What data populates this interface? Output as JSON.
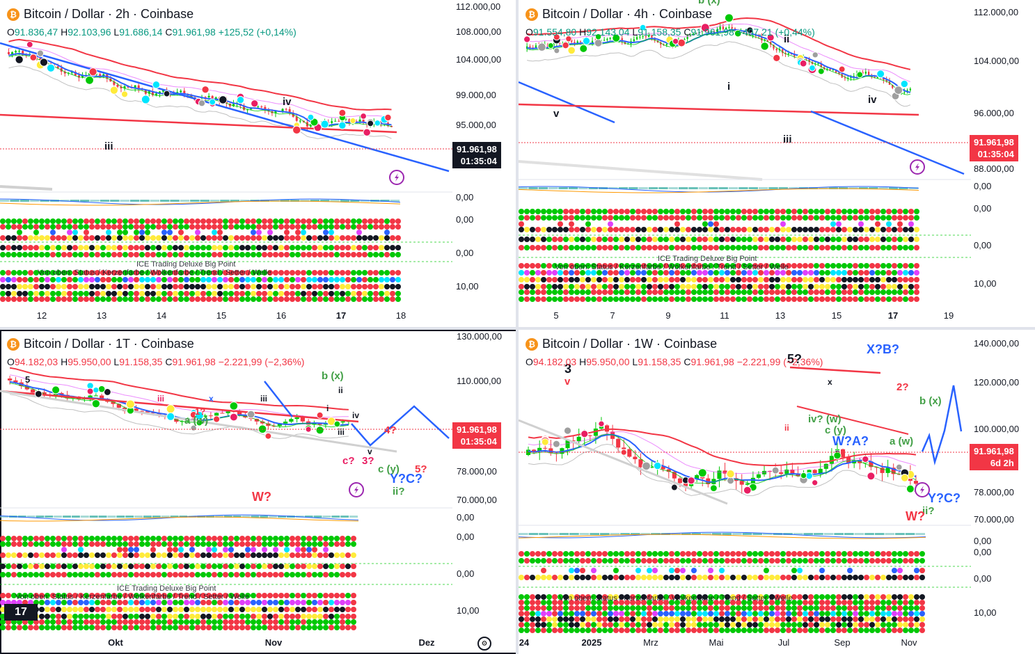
{
  "colors": {
    "up": "#00c805",
    "down": "#f23645",
    "blue": "#2962ff",
    "pink": "#e91e63",
    "green_wave": "#43a047",
    "bg": "#ffffff"
  },
  "panels": [
    {
      "id": "p2h",
      "title": "Bitcoin / Dollar · 2h · Coinbase",
      "ohlc": {
        "o": "91.836,47",
        "h": "92.103,96",
        "l": "91.686,14",
        "c": "91.961,98",
        "chg": "+125,52 (+0,14%)",
        "neg": false
      },
      "price_axis": [
        "112.000,00",
        "108.000,00",
        "104.000,00",
        "99.000,00",
        "95.000,00",
        "0,00",
        "0,00",
        "0,00",
        "10,00"
      ],
      "last_price": "91.961,98",
      "countdown": "01:35:04",
      "tag_style": "dark",
      "x_axis": [
        "12",
        "13",
        "14",
        "15",
        "16",
        "17",
        "18"
      ],
      "bold_x": "17",
      "waves": [
        {
          "t": "iv",
          "c": "#131722"
        },
        {
          "t": "iii",
          "c": "#131722"
        }
      ],
      "indicator_label": "Von oben: Status / Kerzenfarbe / Wolkenfarbe / Trend / Setter / Welle",
      "indicator_title": "ICE Trading Deluxe Big Point"
    },
    {
      "id": "p4h",
      "title": "Bitcoin / Dollar · 4h · Coinbase",
      "ohlc": {
        "o": "91.554,80",
        "h": "92.143,04",
        "l": "91.158,35",
        "c": "91.961,98",
        "chg": "+407,21 (+0,44%)",
        "neg": false
      },
      "price_axis": [
        "112.000,00",
        "104.000,00",
        "96.000,00",
        "88.000,00",
        "0,00",
        "0,00",
        "0,00",
        "10,00"
      ],
      "last_price": "91.961,98",
      "countdown": "01:35:04",
      "tag_style": "red",
      "x_axis": [
        "5",
        "7",
        "9",
        "11",
        "13",
        "15",
        "17",
        "19"
      ],
      "bold_x": "17",
      "waves": [
        {
          "t": "ii",
          "c": "#131722"
        },
        {
          "t": "i",
          "c": "#131722"
        },
        {
          "t": "iv",
          "c": "#131722"
        },
        {
          "t": "iii",
          "c": "#131722"
        },
        {
          "t": "v",
          "c": "#131722"
        },
        {
          "t": "b (x)",
          "c": "#43a047"
        }
      ],
      "indicator_label": "Von oben: Status / Kerzenfarbe / Wolkenfarbe / Trend / Setter / Welle",
      "indicator_title": "ICE Trading Deluxe Big Point"
    },
    {
      "id": "p1d",
      "title": "Bitcoin / Dollar · 1T · Coinbase",
      "ohlc": {
        "o": "94.182,03",
        "h": "95.950,00",
        "l": "91.158,35",
        "c": "91.961,98",
        "chg": "−2.221,99 (−2,36%)",
        "neg": true
      },
      "price_axis": [
        "130.000,00",
        "110.000,00",
        "78.000,00",
        "70.000,00",
        "0,00",
        "0,00",
        "0,00",
        "10,00"
      ],
      "last_price": "91.961,98",
      "countdown": "01:35:04",
      "tag_style": "red",
      "x_axis": [
        "Okt",
        "Nov",
        "Dez"
      ],
      "bold_x": "",
      "waves": [
        {
          "t": "b (x)",
          "c": "#43a047"
        },
        {
          "t": "a (w)",
          "c": "#43a047"
        },
        {
          "t": "iii",
          "c": "#e91e63"
        },
        {
          "t": "x",
          "c": "#2962ff"
        },
        {
          "t": "iii",
          "c": "#131722"
        },
        {
          "t": "i",
          "c": "#131722"
        },
        {
          "t": "ii",
          "c": "#131722"
        },
        {
          "t": "iv",
          "c": "#131722"
        },
        {
          "t": "iii",
          "c": "#131722"
        },
        {
          "t": "v",
          "c": "#131722"
        },
        {
          "t": "1?",
          "c": "#f23645"
        },
        {
          "t": "4?",
          "c": "#f23645"
        },
        {
          "t": "c?",
          "c": "#e91e63"
        },
        {
          "t": "3?",
          "c": "#e91e63"
        },
        {
          "t": "c (y)",
          "c": "#43a047"
        },
        {
          "t": "5?",
          "c": "#f23645"
        },
        {
          "t": "Y?C?",
          "c": "#2962ff"
        },
        {
          "t": "ii?",
          "c": "#43a047"
        },
        {
          "t": "W?",
          "c": "#f23645"
        },
        {
          "t": "5",
          "c": "#131722"
        }
      ],
      "indicator_label": "Von oben: Status / Kerzenfarbe / Wolkenfarbe / Trend / Setter / Welle",
      "indicator_title": "ICE Trading Deluxe Big Point"
    },
    {
      "id": "p1w",
      "title": "Bitcoin / Dollar · 1W · Coinbase",
      "ohlc": {
        "o": "94.182,03",
        "h": "95.950,00",
        "l": "91.158,35",
        "c": "91.961,98",
        "chg": "−2.221,99 (−2,36%)",
        "neg": true
      },
      "price_axis": [
        "140.000,00",
        "120.000,00",
        "100.000,00",
        "78.000,00",
        "70.000,00",
        "0,00",
        "0,00",
        "0,00",
        "10,00"
      ],
      "last_price": "91.961,98",
      "countdown": "6d 2h",
      "tag_style": "red",
      "x_axis": [
        "24",
        "2025",
        "Mrz",
        "Mai",
        "Jul",
        "Sep",
        "Nov"
      ],
      "bold_x": "2025",
      "waves": [
        {
          "t": "3",
          "c": "#131722"
        },
        {
          "t": "v",
          "c": "#f23645"
        },
        {
          "t": "5?",
          "c": "#131722"
        },
        {
          "t": "X?B?",
          "c": "#2962ff"
        },
        {
          "t": "W?A?",
          "c": "#2962ff"
        },
        {
          "t": "iv? (w)",
          "c": "#43a047"
        },
        {
          "t": "c (y)",
          "c": "#43a047"
        },
        {
          "t": "2?",
          "c": "#f23645"
        },
        {
          "t": "b (x)",
          "c": "#43a047"
        },
        {
          "t": "a (w)",
          "c": "#43a047"
        },
        {
          "t": "Y?C?",
          "c": "#2962ff"
        },
        {
          "t": "ii?",
          "c": "#43a047"
        },
        {
          "t": "W?",
          "c": "#f23645"
        },
        {
          "t": "ii",
          "c": "#f23645"
        },
        {
          "t": "x",
          "c": "#131722"
        }
      ],
      "indicator_label": "Von oben: Status / Kerzenfarbe / Wolkenfarbe / Trend / Setter / Welle",
      "indicator_title": "ICE Trading Deluxe Big Point"
    }
  ]
}
